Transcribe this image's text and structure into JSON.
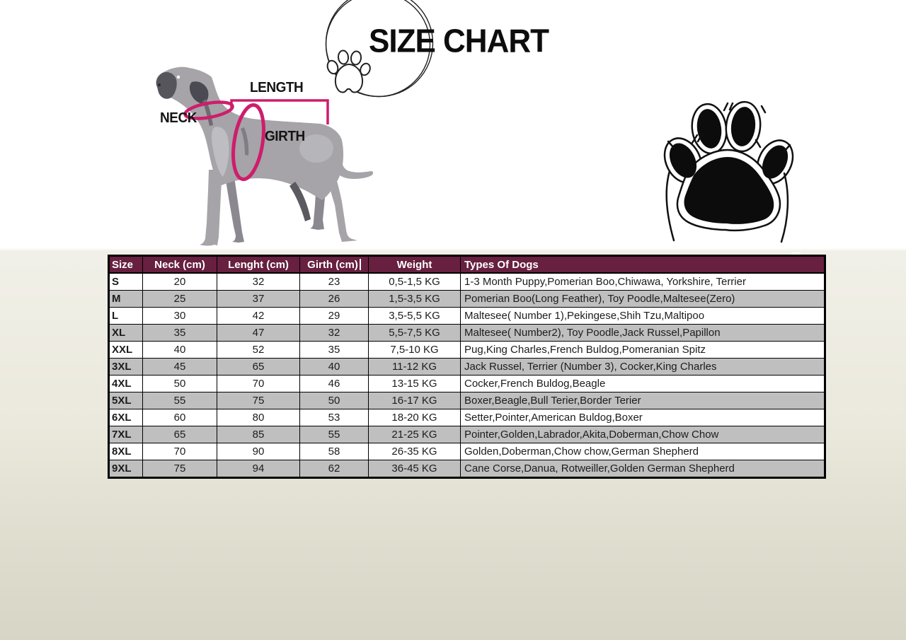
{
  "page": {
    "title": "SIZE CHART"
  },
  "diagram": {
    "neck_label": "NECK",
    "length_label": "LENGTH",
    "girth_label": "GIRTH"
  },
  "icons": {
    "small_paw": "paw-outline-icon",
    "big_paw": "paw-print-icon",
    "dog": "dog-measurement-illustration"
  },
  "size_table": {
    "headers": [
      "Size",
      "Neck (cm)",
      "Lenght (cm)",
      "Girth (cm)",
      "Weight",
      "Types Of Dogs"
    ],
    "rows": [
      [
        "S",
        "20",
        "32",
        "23",
        "0,5-1,5 KG",
        "1-3 Month Puppy,Pomerian Boo,Chiwawa, Yorkshire, Terrier"
      ],
      [
        "M",
        "25",
        "37",
        "26",
        "1,5-3,5 KG",
        "Pomerian Boo(Long Feather), Toy Poodle,Maltesee(Zero)"
      ],
      [
        "L",
        "30",
        "42",
        "29",
        "3,5-5,5 KG",
        "Maltesee( Number 1),Pekingese,Shih Tzu,Maltipoo"
      ],
      [
        "XL",
        "35",
        "47",
        "32",
        "5,5-7,5 KG",
        "Maltesee( Number2), Toy Poodle,Jack Russel,Papillon"
      ],
      [
        "XXL",
        "40",
        "52",
        "35",
        "7,5-10 KG",
        "Pug,King Charles,French Buldog,Pomeranian Spitz"
      ],
      [
        "3XL",
        "45",
        "65",
        "40",
        "11-12 KG",
        "Jack Russel, Terrier (Number 3), Cocker,King Charles"
      ],
      [
        "4XL",
        "50",
        "70",
        "46",
        "13-15 KG",
        "Cocker,French Buldog,Beagle"
      ],
      [
        "5XL",
        "55",
        "75",
        "50",
        "16-17 KG",
        "Boxer,Beagle,Bull Terier,Border Terier"
      ],
      [
        "6XL",
        "60",
        "80",
        "53",
        "18-20 KG",
        "Setter,Pointer,American Buldog,Boxer"
      ],
      [
        "7XL",
        "65",
        "85",
        "55",
        "21-25 KG",
        "Pointer,Golden,Labrador,Akita,Doberman,Chow Chow"
      ],
      [
        "8XL",
        "70",
        "90",
        "58",
        "26-35 KG",
        "Golden,Doberman,Chow chow,German Shepherd"
      ],
      [
        "9XL",
        "75",
        "94",
        "62",
        "36-45 KG",
        "Cane Corse,Danua, Rotweiller,Golden German Shepherd"
      ]
    ]
  },
  "colors": {
    "header_bg": "#67203f",
    "header_text": "#ffffff",
    "row_alt": "#bfbfbf",
    "measure_pink": "#ce1d6c",
    "ink": "#111111"
  }
}
